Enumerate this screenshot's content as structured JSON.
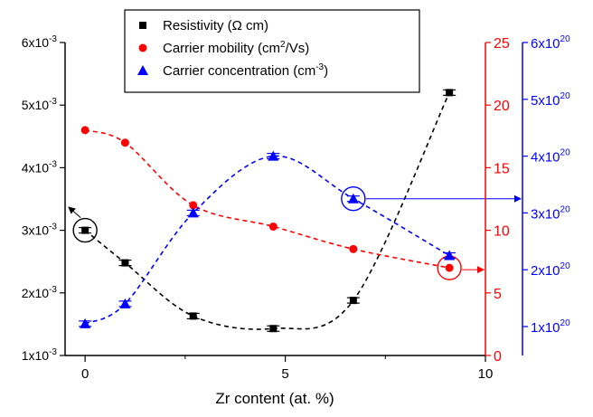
{
  "chart_data": {
    "type": "scatter",
    "xlabel": "Zr content (at. %)",
    "xlim": [
      -0.5,
      10
    ],
    "x_ticks": [
      {
        "label": "0",
        "value": 0
      },
      {
        "label": "5",
        "value": 5
      },
      {
        "label": "10",
        "value": 10
      }
    ],
    "left_axis": {
      "ylim": [
        0.001,
        0.006
      ],
      "color": "#000000",
      "ticks": [
        {
          "value": 0.001,
          "mant": "1x10",
          "exp": "-3"
        },
        {
          "value": 0.002,
          "mant": "2x10",
          "exp": "-3"
        },
        {
          "value": 0.003,
          "mant": "3x10",
          "exp": "-3"
        },
        {
          "value": 0.004,
          "mant": "4x10",
          "exp": "-3"
        },
        {
          "value": 0.005,
          "mant": "5x10",
          "exp": "-3"
        },
        {
          "value": 0.006,
          "mant": "6x10",
          "exp": "-3"
        }
      ]
    },
    "mid_axis": {
      "ylim": [
        0,
        25
      ],
      "color": "#ff0000",
      "ticks": [
        {
          "value": 0,
          "label": "0"
        },
        {
          "value": 5,
          "label": "5"
        },
        {
          "value": 10,
          "label": "10"
        },
        {
          "value": 15,
          "label": "15"
        },
        {
          "value": 20,
          "label": "20"
        },
        {
          "value": 25,
          "label": "25"
        }
      ]
    },
    "right_axis": {
      "ylim": [
        5.2e+20,
        6e+20
      ],
      "color": "#0000ff",
      "ticks": [
        {
          "value": 1e+20,
          "mant": "1x10",
          "exp": "20"
        },
        {
          "value": 2e+20,
          "mant": "2x10",
          "exp": "20"
        },
        {
          "value": 3e+20,
          "mant": "3x10",
          "exp": "20"
        },
        {
          "value": 4e+20,
          "mant": "4x10",
          "exp": "20"
        },
        {
          "value": 5e+20,
          "mant": "5x10",
          "exp": "20"
        },
        {
          "value": 6e+20,
          "mant": "6x10",
          "exp": "20"
        }
      ]
    },
    "series": [
      {
        "name": "Resistivity (Ω cm)",
        "legend_main": "Resistivity (Ω cm)",
        "legend_sup": "",
        "legend_tail": "",
        "axis": "left",
        "marker": "square",
        "color": "#000000",
        "x": [
          0,
          1,
          2.7,
          4.7,
          6.7,
          9.1
        ],
        "y": [
          0.003,
          0.00248,
          0.00163,
          0.00143,
          0.00188,
          0.0052
        ]
      },
      {
        "name": "Carrier mobility (cm2/Vs)",
        "legend_main": "Carrier mobility (cm",
        "legend_sup": "2",
        "legend_tail": "/Vs)",
        "axis": "mid",
        "marker": "circle",
        "color": "#ff0000",
        "x": [
          0,
          1,
          2.7,
          4.7,
          6.7,
          9.1
        ],
        "y": [
          18,
          17,
          12,
          10.3,
          8.5,
          7
        ]
      },
      {
        "name": "Carrier concentration (cm-3)",
        "legend_main": "Carrier concentration (cm",
        "legend_sup": "-3",
        "legend_tail": ")",
        "axis": "right",
        "marker": "triangle",
        "color": "#0000ff",
        "x": [
          0,
          1,
          2.7,
          4.7,
          6.7,
          9.1
        ],
        "y": [
          1.05e+20,
          1.4e+20,
          3e+20,
          4e+20,
          3.25e+20,
          2.25e+20
        ]
      }
    ],
    "legend": "top-center",
    "grid": false
  }
}
